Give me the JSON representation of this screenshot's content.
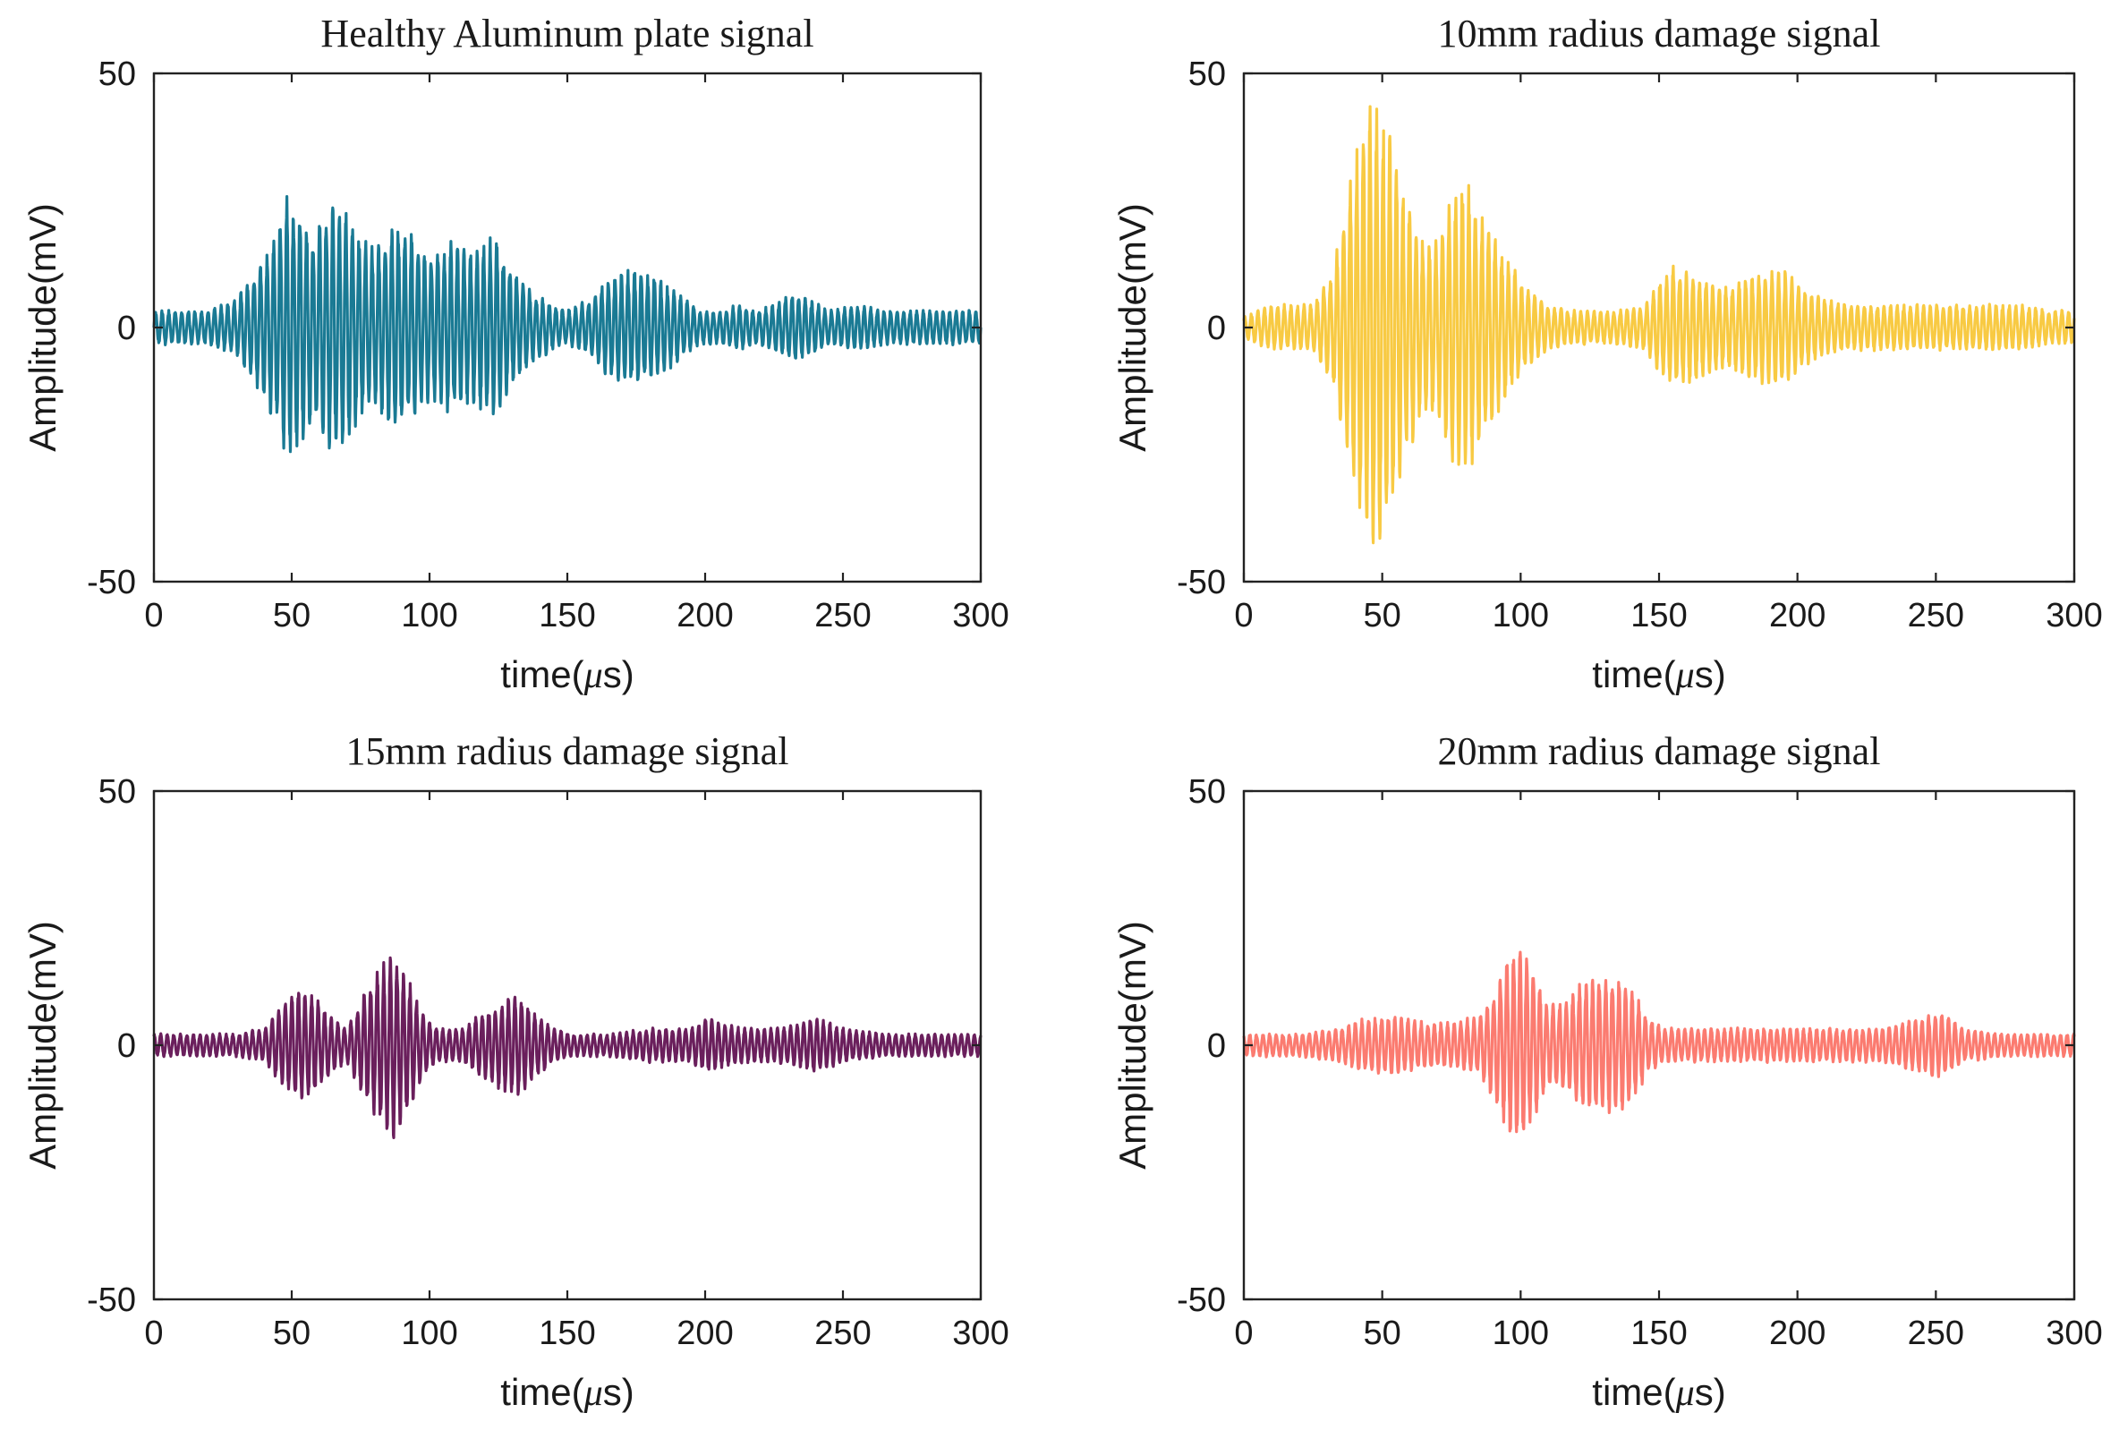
{
  "chart_data": [
    {
      "type": "line",
      "title": "Healthy Aluminum plate signal",
      "xlabel_pre": "time(",
      "xlabel_mu": "μ",
      "xlabel_post": "s)",
      "ylabel": "Amplitude(mV)",
      "xlim": [
        0,
        300
      ],
      "ylim": [
        -50,
        50
      ],
      "xticks": [
        "0",
        "50",
        "100",
        "150",
        "200",
        "250",
        "300"
      ],
      "yticks": [
        "-50",
        "0",
        "50"
      ],
      "color": "#1a7a94",
      "x": [
        0,
        20,
        30,
        38,
        44,
        48,
        52,
        58,
        65,
        68,
        72,
        80,
        88,
        92,
        100,
        108,
        115,
        120,
        124,
        130,
        138,
        145,
        150,
        158,
        165,
        172,
        176,
        182,
        190,
        198,
        205,
        212,
        220,
        228,
        232,
        238,
        245,
        255,
        265,
        275,
        285,
        300
      ],
      "y_envelope": [
        3,
        3,
        5,
        11,
        17,
        24,
        22,
        17,
        22,
        23,
        18,
        14,
        19,
        17,
        13,
        15,
        13,
        15,
        16,
        10,
        6,
        4,
        3,
        5,
        9,
        10,
        10,
        9,
        6,
        3,
        3,
        4,
        3,
        5,
        6,
        5,
        3,
        4,
        3,
        3,
        3,
        3
      ]
    },
    {
      "type": "line",
      "title": "10mm radius damage signal",
      "xlabel_pre": "time(",
      "xlabel_mu": "μ",
      "xlabel_post": "s)",
      "ylabel": "Amplitude(mV)",
      "xlim": [
        0,
        300
      ],
      "ylim": [
        -50,
        50
      ],
      "xticks": [
        "0",
        "50",
        "100",
        "150",
        "200",
        "250",
        "300"
      ],
      "yticks": [
        "-50",
        "0",
        "50"
      ],
      "color": "#f8ca43",
      "x": [
        0,
        10,
        25,
        32,
        38,
        43,
        47,
        52,
        58,
        64,
        70,
        76,
        80,
        86,
        94,
        102,
        110,
        118,
        125,
        135,
        145,
        150,
        155,
        160,
        168,
        176,
        182,
        188,
        195,
        202,
        210,
        220,
        230,
        240,
        250,
        260,
        270,
        280,
        290,
        300
      ],
      "y_envelope": [
        2,
        4,
        4,
        10,
        25,
        37,
        41,
        36,
        24,
        16,
        15,
        25,
        26,
        20,
        13,
        7,
        4,
        3,
        3,
        3,
        4,
        8,
        11,
        10,
        8,
        7,
        9,
        10,
        10,
        7,
        5,
        4,
        4,
        4,
        4,
        4,
        4,
        4,
        3,
        3
      ]
    },
    {
      "type": "line",
      "title": "15mm radius damage signal",
      "xlabel_pre": "time(",
      "xlabel_mu": "μ",
      "xlabel_post": "s)",
      "ylabel": "Amplitude(mV)",
      "xlim": [
        0,
        300
      ],
      "ylim": [
        -50,
        50
      ],
      "xticks": [
        "0",
        "50",
        "100",
        "150",
        "200",
        "250",
        "300"
      ],
      "yticks": [
        "-50",
        "0",
        "50"
      ],
      "color": "#6a1f5c",
      "x": [
        0,
        30,
        40,
        46,
        52,
        58,
        64,
        70,
        76,
        82,
        87,
        92,
        98,
        104,
        112,
        120,
        126,
        132,
        138,
        145,
        152,
        165,
        180,
        195,
        200,
        205,
        215,
        225,
        235,
        240,
        250,
        265,
        280,
        300
      ],
      "y_envelope": [
        2,
        2,
        3,
        7,
        10,
        9,
        5,
        3,
        9,
        14,
        16,
        12,
        5,
        3,
        3,
        6,
        8,
        9,
        6,
        3,
        2,
        2,
        3,
        3,
        5,
        4,
        3,
        3,
        4,
        5,
        3,
        2,
        2,
        2
      ]
    },
    {
      "type": "line",
      "title": "20mm radius damage signal",
      "xlabel_pre": "time(",
      "xlabel_mu": "μ",
      "xlabel_post": "s)",
      "ylabel": "Amplitude(mV)",
      "xlim": [
        0,
        300
      ],
      "ylim": [
        -50,
        50
      ],
      "xticks": [
        "0",
        "50",
        "100",
        "150",
        "200",
        "250",
        "300"
      ],
      "yticks": [
        "-50",
        "0",
        "50"
      ],
      "color": "#fb7b70",
      "x": [
        0,
        20,
        35,
        45,
        55,
        65,
        75,
        84,
        90,
        95,
        100,
        104,
        110,
        116,
        122,
        128,
        134,
        140,
        146,
        152,
        160,
        175,
        190,
        210,
        230,
        238,
        245,
        252,
        260,
        275,
        300
      ],
      "y_envelope": [
        2,
        2,
        3,
        5,
        5,
        4,
        4,
        5,
        9,
        15,
        18,
        14,
        7,
        8,
        11,
        12,
        12,
        10,
        5,
        3,
        3,
        3,
        3,
        3,
        3,
        4,
        5,
        6,
        3,
        2,
        2
      ]
    }
  ]
}
